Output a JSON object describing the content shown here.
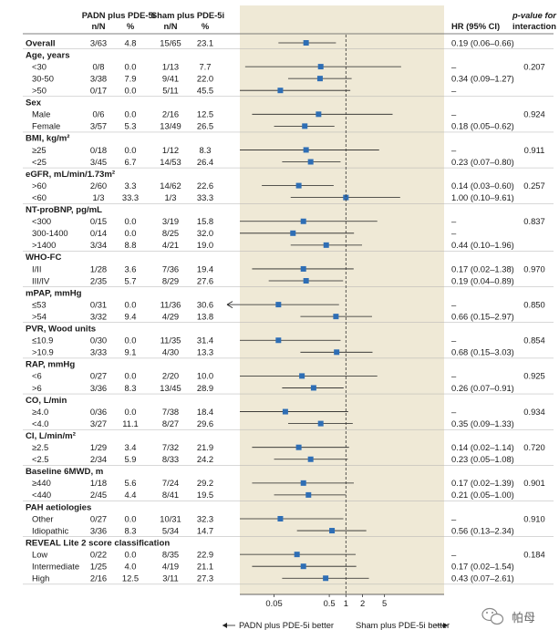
{
  "headers": {
    "padn": "PADN plus PDE-5i",
    "padn_n": "n/N",
    "padn_pct": "%",
    "sham": "Sham plus PDE-5i",
    "sham_n": "n/N",
    "sham_pct": "%",
    "hr": "HR (95% CI)",
    "pval_line1": "p-value for",
    "pval_line2": "interaction"
  },
  "footer": {
    "left": "PADN plus PDE-5i better",
    "right": "Sham plus PDE-5i better"
  },
  "watermark": {
    "icon": "wechat-icon",
    "text": "帕母"
  },
  "colors": {
    "panel": "#efe9d6",
    "marker": "#2e6eb5",
    "line": "#222222"
  },
  "chart_data": {
    "type": "forest",
    "x_scale": "log",
    "x_ticks": [
      {
        "value": 0.05,
        "label": "0.05"
      },
      {
        "value": 0.5,
        "label": "0.5"
      },
      {
        "value": 1,
        "label": "1"
      },
      {
        "value": 2,
        "label": "2"
      },
      {
        "value": 5,
        "label": "5"
      }
    ],
    "x_range": [
      0.012,
      60
    ],
    "reference_line": 1,
    "rows": [
      {
        "label": "Overall",
        "kind": "group",
        "padn_n": "3/63",
        "padn_pct": "4.8",
        "sham_n": "15/65",
        "sham_pct": "23.1",
        "hr": 0.19,
        "lo": 0.06,
        "hi": 0.66,
        "hr_text": "0.19 (0.06–0.66)",
        "pval": ""
      },
      {
        "label": "Age, years",
        "kind": "header"
      },
      {
        "label": "<30",
        "kind": "sub",
        "padn_n": "0/8",
        "padn_pct": "0.0",
        "sham_n": "1/13",
        "sham_pct": "7.7",
        "hr": 0.35,
        "lo": 0.015,
        "hi": 10,
        "hr_text": "–",
        "pval": "0.207"
      },
      {
        "label": "30-50",
        "kind": "sub",
        "padn_n": "3/38",
        "padn_pct": "7.9",
        "sham_n": "9/41",
        "sham_pct": "22.0",
        "hr": 0.34,
        "lo": 0.09,
        "hi": 1.27,
        "hr_text": "0.34 (0.09–1.27)",
        "pval": ""
      },
      {
        "label": ">50",
        "kind": "sub",
        "padn_n": "0/17",
        "padn_pct": "0.0",
        "sham_n": "5/11",
        "sham_pct": "45.5",
        "hr": 0.065,
        "lo": 0.0035,
        "hi": 1.2,
        "hr_text": "–",
        "pval": ""
      },
      {
        "label": "Sex",
        "kind": "header"
      },
      {
        "label": "Male",
        "kind": "sub",
        "padn_n": "0/6",
        "padn_pct": "0.0",
        "sham_n": "2/16",
        "sham_pct": "12.5",
        "hr": 0.32,
        "lo": 0.02,
        "hi": 7,
        "hr_text": "–",
        "pval": "0.924"
      },
      {
        "label": "Female",
        "kind": "sub",
        "padn_n": "3/57",
        "padn_pct": "5.3",
        "sham_n": "13/49",
        "sham_pct": "26.5",
        "hr": 0.18,
        "lo": 0.05,
        "hi": 0.62,
        "hr_text": "0.18 (0.05–0.62)",
        "pval": ""
      },
      {
        "label": "BMI, kg/m²",
        "kind": "header"
      },
      {
        "label": "≥25",
        "kind": "sub",
        "padn_n": "0/18",
        "padn_pct": "0.0",
        "sham_n": "1/12",
        "sham_pct": "8.3",
        "hr": 0.19,
        "lo": 0.01,
        "hi": 4,
        "hr_text": "–",
        "pval": "0.911"
      },
      {
        "label": "<25",
        "kind": "sub",
        "padn_n": "3/45",
        "padn_pct": "6.7",
        "sham_n": "14/53",
        "sham_pct": "26.4",
        "hr": 0.23,
        "lo": 0.07,
        "hi": 0.8,
        "hr_text": "0.23 (0.07–0.80)",
        "pval": ""
      },
      {
        "label": "eGFR, mL/min/1.73m²",
        "kind": "header"
      },
      {
        "label": ">60",
        "kind": "sub",
        "padn_n": "2/60",
        "padn_pct": "3.3",
        "sham_n": "14/62",
        "sham_pct": "22.6",
        "hr": 0.14,
        "lo": 0.03,
        "hi": 0.6,
        "hr_text": "0.14 (0.03–0.60)",
        "pval": "0.257"
      },
      {
        "label": "<60",
        "kind": "sub",
        "padn_n": "1/3",
        "padn_pct": "33.3",
        "sham_n": "1/3",
        "sham_pct": "33.3",
        "hr": 1.0,
        "lo": 0.1,
        "hi": 9.61,
        "hr_text": "1.00 (0.10–9.61)",
        "pval": ""
      },
      {
        "label": "NT-proBNP, pg/mL",
        "kind": "header"
      },
      {
        "label": "<300",
        "kind": "sub",
        "padn_n": "0/15",
        "padn_pct": "0.0",
        "sham_n": "3/19",
        "sham_pct": "15.8",
        "hr": 0.17,
        "lo": 0.01,
        "hi": 3.7,
        "hr_text": "–",
        "pval": "0.837"
      },
      {
        "label": "300-1400",
        "kind": "sub",
        "padn_n": "0/14",
        "padn_pct": "0.0",
        "sham_n": "8/25",
        "sham_pct": "32.0",
        "hr": 0.11,
        "lo": 0.009,
        "hi": 1.4,
        "hr_text": "–",
        "pval": ""
      },
      {
        "label": ">1400",
        "kind": "sub",
        "padn_n": "3/34",
        "padn_pct": "8.8",
        "sham_n": "4/21",
        "sham_pct": "19.0",
        "hr": 0.44,
        "lo": 0.1,
        "hi": 1.96,
        "hr_text": "0.44 (0.10–1.96)",
        "pval": ""
      },
      {
        "label": "WHO-FC",
        "kind": "header"
      },
      {
        "label": "I/II",
        "kind": "sub",
        "padn_n": "1/28",
        "padn_pct": "3.6",
        "sham_n": "7/36",
        "sham_pct": "19.4",
        "hr": 0.17,
        "lo": 0.02,
        "hi": 1.38,
        "hr_text": "0.17 (0.02–1.38)",
        "pval": "0.970"
      },
      {
        "label": "III/IV",
        "kind": "sub",
        "padn_n": "2/35",
        "padn_pct": "5.7",
        "sham_n": "8/29",
        "sham_pct": "27.6",
        "hr": 0.19,
        "lo": 0.04,
        "hi": 0.89,
        "hr_text": "0.19 (0.04–0.89)",
        "pval": ""
      },
      {
        "label": "mPAP, mmHg",
        "kind": "header"
      },
      {
        "label": "≤53",
        "kind": "sub",
        "padn_n": "0/31",
        "padn_pct": "0.0",
        "sham_n": "11/36",
        "sham_pct": "30.6",
        "hr": 0.06,
        "lo": 0.003,
        "hi": 0.75,
        "hr_text": "–",
        "pval": "0.850",
        "arrow_left": true
      },
      {
        "label": ">54",
        "kind": "sub",
        "padn_n": "3/32",
        "padn_pct": "9.4",
        "sham_n": "4/29",
        "sham_pct": "13.8",
        "hr": 0.66,
        "lo": 0.15,
        "hi": 2.97,
        "hr_text": "0.66 (0.15–2.97)",
        "pval": ""
      },
      {
        "label": "PVR, Wood units",
        "kind": "header"
      },
      {
        "label": "≤10.9",
        "kind": "sub",
        "padn_n": "0/30",
        "padn_pct": "0.0",
        "sham_n": "11/35",
        "sham_pct": "31.4",
        "hr": 0.06,
        "lo": 0.004,
        "hi": 0.8,
        "hr_text": "–",
        "pval": "0.854"
      },
      {
        "label": ">10.9",
        "kind": "sub",
        "padn_n": "3/33",
        "padn_pct": "9.1",
        "sham_n": "4/30",
        "sham_pct": "13.3",
        "hr": 0.68,
        "lo": 0.15,
        "hi": 3.03,
        "hr_text": "0.68 (0.15–3.03)",
        "pval": ""
      },
      {
        "label": "RAP, mmHg",
        "kind": "header"
      },
      {
        "label": "<6",
        "kind": "sub",
        "padn_n": "0/27",
        "padn_pct": "0.0",
        "sham_n": "2/20",
        "sham_pct": "10.0",
        "hr": 0.16,
        "lo": 0.01,
        "hi": 3.7,
        "hr_text": "–",
        "pval": "0.925"
      },
      {
        "label": ">6",
        "kind": "sub",
        "padn_n": "3/36",
        "padn_pct": "8.3",
        "sham_n": "13/45",
        "sham_pct": "28.9",
        "hr": 0.26,
        "lo": 0.07,
        "hi": 0.91,
        "hr_text": "0.26 (0.07–0.91)",
        "pval": ""
      },
      {
        "label": "CO, L/min",
        "kind": "header"
      },
      {
        "label": "≥4.0",
        "kind": "sub",
        "padn_n": "0/36",
        "padn_pct": "0.0",
        "sham_n": "7/38",
        "sham_pct": "18.4",
        "hr": 0.08,
        "lo": 0.005,
        "hi": 1.1,
        "hr_text": "–",
        "pval": "0.934"
      },
      {
        "label": "<4.0",
        "kind": "sub",
        "padn_n": "3/27",
        "padn_pct": "11.1",
        "sham_n": "8/27",
        "sham_pct": "29.6",
        "hr": 0.35,
        "lo": 0.09,
        "hi": 1.33,
        "hr_text": "0.35 (0.09–1.33)",
        "pval": ""
      },
      {
        "label": "CI, L/min/m²",
        "kind": "header"
      },
      {
        "label": "≥2.5",
        "kind": "sub",
        "padn_n": "1/29",
        "padn_pct": "3.4",
        "sham_n": "7/32",
        "sham_pct": "21.9",
        "hr": 0.14,
        "lo": 0.02,
        "hi": 1.14,
        "hr_text": "0.14 (0.02–1.14)",
        "pval": "0.720"
      },
      {
        "label": "<2.5",
        "kind": "sub",
        "padn_n": "2/34",
        "padn_pct": "5.9",
        "sham_n": "8/33",
        "sham_pct": "24.2",
        "hr": 0.23,
        "lo": 0.05,
        "hi": 1.08,
        "hr_text": "0.23 (0.05–1.08)",
        "pval": ""
      },
      {
        "label": "Baseline 6MWD, m",
        "kind": "header"
      },
      {
        "label": "≥440",
        "kind": "sub",
        "padn_n": "1/18",
        "padn_pct": "5.6",
        "sham_n": "7/24",
        "sham_pct": "29.2",
        "hr": 0.17,
        "lo": 0.02,
        "hi": 1.39,
        "hr_text": "0.17 (0.02–1.39)",
        "pval": "0.901"
      },
      {
        "label": "<440",
        "kind": "sub",
        "padn_n": "2/45",
        "padn_pct": "4.4",
        "sham_n": "8/41",
        "sham_pct": "19.5",
        "hr": 0.21,
        "lo": 0.05,
        "hi": 1.0,
        "hr_text": "0.21 (0.05–1.00)",
        "pval": ""
      },
      {
        "label": "PAH aetiologies",
        "kind": "header"
      },
      {
        "label": "Other",
        "kind": "sub",
        "padn_n": "0/27",
        "padn_pct": "0.0",
        "sham_n": "10/31",
        "sham_pct": "32.3",
        "hr": 0.065,
        "lo": 0.004,
        "hi": 0.9,
        "hr_text": "–",
        "pval": "0.910"
      },
      {
        "label": "Idiopathic",
        "kind": "sub",
        "padn_n": "3/36",
        "padn_pct": "8.3",
        "sham_n": "5/34",
        "sham_pct": "14.7",
        "hr": 0.56,
        "lo": 0.13,
        "hi": 2.34,
        "hr_text": "0.56 (0.13–2.34)",
        "pval": ""
      },
      {
        "label": "REVEAL Lite 2 score classification",
        "kind": "header"
      },
      {
        "label": "Low",
        "kind": "sub",
        "padn_n": "0/22",
        "padn_pct": "0.0",
        "sham_n": "8/35",
        "sham_pct": "22.9",
        "hr": 0.13,
        "lo": 0.01,
        "hi": 1.5,
        "hr_text": "–",
        "pval": "0.184"
      },
      {
        "label": "Intermediate",
        "kind": "sub",
        "padn_n": "1/25",
        "padn_pct": "4.0",
        "sham_n": "4/19",
        "sham_pct": "21.1",
        "hr": 0.17,
        "lo": 0.02,
        "hi": 1.54,
        "hr_text": "0.17 (0.02–1.54)",
        "pval": ""
      },
      {
        "label": "High",
        "kind": "sub",
        "padn_n": "2/16",
        "padn_pct": "12.5",
        "sham_n": "3/11",
        "sham_pct": "27.3",
        "hr": 0.43,
        "lo": 0.07,
        "hi": 2.61,
        "hr_text": "0.43 (0.07–2.61)",
        "pval": ""
      }
    ]
  }
}
